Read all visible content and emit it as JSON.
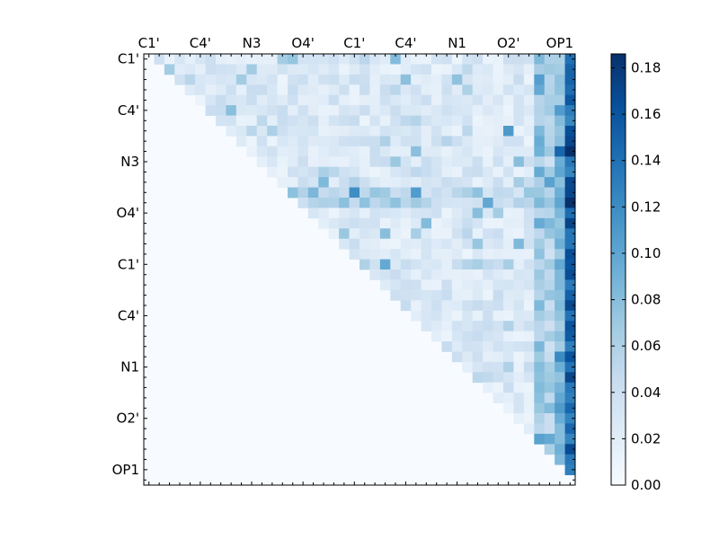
{
  "chart_data": {
    "type": "heatmap",
    "colormap": "Blues",
    "grid": false,
    "legend_position": "right",
    "matrix_size": 42,
    "x_tick_labels": [
      "C1'",
      "C4'",
      "N3",
      "O4'",
      "C1'",
      "C4'",
      "N1",
      "O2'",
      "OP1"
    ],
    "y_tick_labels": [
      "C1'",
      "C4'",
      "N3",
      "O4'",
      "C1'",
      "C4'",
      "N1",
      "O2'",
      "OP1"
    ],
    "tick_label_indices": [
      0,
      5,
      10,
      15,
      20,
      25,
      30,
      35,
      40
    ],
    "colorbar": {
      "min": 0.0,
      "max": 0.186,
      "ticks": [
        0.0,
        0.02,
        0.04,
        0.06,
        0.08,
        0.1,
        0.12,
        0.14,
        0.16,
        0.18
      ],
      "tick_labels": [
        "0.00",
        "0.02",
        "0.04",
        "0.06",
        "0.08",
        "0.10",
        "0.12",
        "0.14",
        "0.16",
        "0.18"
      ]
    },
    "hot_columns": [
      {
        "col": 41,
        "base": 0.12,
        "variation": 0.05
      },
      {
        "col": 40,
        "base": 0.06,
        "variation": 0.05
      },
      {
        "col": 39,
        "base": 0.035,
        "variation": 0.04
      },
      {
        "col": 38,
        "base": 0.05,
        "variation": 0.05
      }
    ],
    "hot_rows": [
      {
        "row": 13,
        "base": 0.055,
        "variation": 0.04
      },
      {
        "row": 14,
        "base": 0.05,
        "variation": 0.05
      },
      {
        "row": 20,
        "base": 0.04,
        "variation": 0.05
      },
      {
        "row": 31,
        "base": 0.045,
        "variation": 0.05
      }
    ],
    "notable_cells": [
      {
        "row": 14,
        "col": 41,
        "value": 0.186
      },
      {
        "row": 13,
        "col": 41,
        "value": 0.17
      },
      {
        "row": 31,
        "col": 41,
        "value": 0.17
      },
      {
        "row": 20,
        "col": 41,
        "value": 0.16
      },
      {
        "row": 1,
        "col": 41,
        "value": 0.15
      },
      {
        "row": 0,
        "col": 41,
        "value": 0.14
      },
      {
        "row": 7,
        "col": 35,
        "value": 0.11
      },
      {
        "row": 13,
        "col": 13,
        "value": 0.1
      },
      {
        "row": 41,
        "col": 41,
        "value": 0.09
      }
    ],
    "background_value": 0.01,
    "triangle": "upper"
  }
}
